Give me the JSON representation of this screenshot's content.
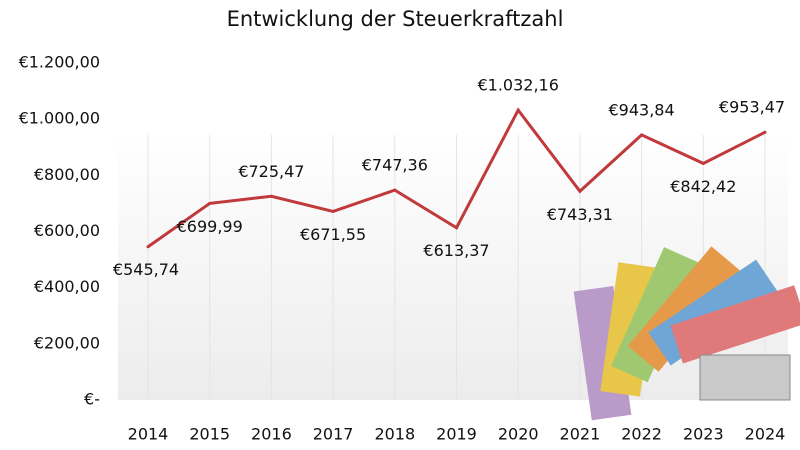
{
  "chart_data": {
    "type": "line",
    "title": "Entwicklung der Steuerkraftzahl",
    "categories": [
      "2014",
      "2015",
      "2016",
      "2017",
      "2018",
      "2019",
      "2020",
      "2021",
      "2022",
      "2023",
      "2024"
    ],
    "values": [
      545.74,
      699.99,
      725.47,
      671.55,
      747.36,
      613.37,
      1032.16,
      743.31,
      943.84,
      842.42,
      953.47
    ],
    "value_labels": [
      "€545,74",
      "€699,99",
      "€725,47",
      "€671,55",
      "€747,36",
      "€613,37",
      "€1.032,16",
      "€743,31",
      "€943,84",
      "€842,42",
      "€953,47"
    ],
    "color": "#c0393b",
    "ylim": [
      0,
      1200
    ],
    "yticks": [
      {
        "value": 0,
        "label": "€-"
      },
      {
        "value": 200,
        "label": "€200,00"
      },
      {
        "value": 400,
        "label": "€400,00"
      },
      {
        "value": 600,
        "label": "€600,00"
      },
      {
        "value": 800,
        "label": "€800,00"
      },
      {
        "value": 1000,
        "label": "€1.000,00"
      },
      {
        "value": 1200,
        "label": "€1.200,00"
      }
    ],
    "grid": true
  }
}
